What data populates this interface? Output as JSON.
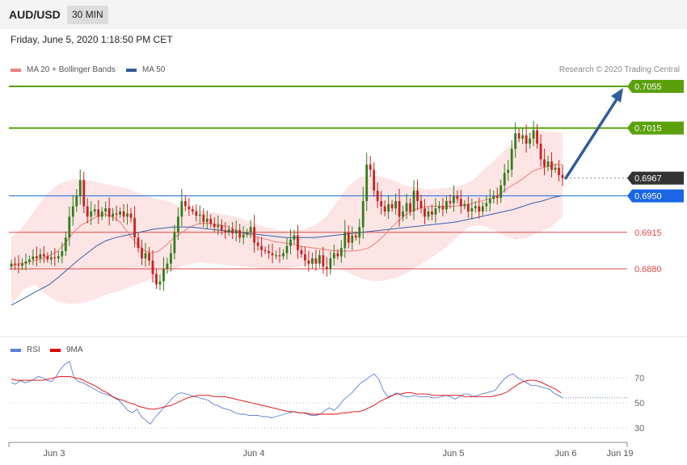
{
  "header": {
    "symbol": "AUD/USD",
    "timeframe": "30 MIN",
    "datetime": "Friday, June 5, 2020 1:18:50 PM CET",
    "credit": "Research © 2020 Trading Central"
  },
  "legend_main": [
    {
      "label": "MA 20 + Bollinger Bands",
      "color": "#f08080"
    },
    {
      "label": "MA 50",
      "color": "#2f5c9c"
    }
  ],
  "legend_rsi": [
    {
      "label": "RSI",
      "color": "#5b7fd6"
    },
    {
      "label": "9MA",
      "color": "#e00000"
    }
  ],
  "colors": {
    "resistance": "#5aa00a",
    "support": "#e04848",
    "pivot": "#1a66e6",
    "last_price": "#333333",
    "arrow": "#2f5c9c",
    "band_fill": "#fde0e0",
    "candle_up": "#2f7d1c",
    "candle_down": "#cc1f1f"
  },
  "chart_data": [
    {
      "type": "candlestick",
      "title": "AUD/USD 30 MIN",
      "ylim": [
        0.6842,
        0.7065
      ],
      "x_tick_labels": [
        "Jun 3",
        "Jun 4",
        "Jun 5",
        "Jun 6",
        "Jun 19"
      ],
      "levels": [
        {
          "value": 0.7055,
          "label": "0.7055",
          "kind": "resistance"
        },
        {
          "value": 0.7015,
          "label": "0.7015",
          "kind": "resistance"
        },
        {
          "value": 0.6967,
          "label": "0.6967",
          "kind": "last"
        },
        {
          "value": 0.695,
          "label": "0.6950",
          "kind": "pivot"
        },
        {
          "value": 0.6915,
          "label": "0.6915",
          "kind": "support"
        },
        {
          "value": 0.688,
          "label": "0.6880",
          "kind": "support"
        }
      ],
      "closes": [
        0.6885,
        0.6884,
        0.6883,
        0.6885,
        0.6887,
        0.6889,
        0.6892,
        0.689,
        0.6894,
        0.6892,
        0.6889,
        0.6891,
        0.689,
        0.6892,
        0.6897,
        0.691,
        0.693,
        0.694,
        0.695,
        0.6965,
        0.694,
        0.693,
        0.6935,
        0.6937,
        0.693,
        0.6935,
        0.6938,
        0.693,
        0.6933,
        0.6932,
        0.6935,
        0.693,
        0.6933,
        0.6929,
        0.691,
        0.69,
        0.689,
        0.6895,
        0.6888,
        0.6875,
        0.6865,
        0.6868,
        0.688,
        0.6885,
        0.6895,
        0.6915,
        0.693,
        0.6945,
        0.694,
        0.6937,
        0.6935,
        0.6931,
        0.6932,
        0.6925,
        0.6928,
        0.6923,
        0.692,
        0.6922,
        0.6917,
        0.6915,
        0.6918,
        0.6914,
        0.6917,
        0.691,
        0.6913,
        0.6915,
        0.692,
        0.6905,
        0.6902,
        0.6898,
        0.6897,
        0.6895,
        0.6893,
        0.6893,
        0.6892,
        0.6895,
        0.6902,
        0.6908,
        0.6912,
        0.6898,
        0.6894,
        0.6888,
        0.6885,
        0.689,
        0.6885,
        0.6893,
        0.6882,
        0.688,
        0.689,
        0.6895,
        0.6892,
        0.69,
        0.6915,
        0.6905,
        0.6912,
        0.691,
        0.692,
        0.6945,
        0.698,
        0.6975,
        0.6955,
        0.6945,
        0.694,
        0.6935,
        0.6942,
        0.6938,
        0.6945,
        0.693,
        0.6935,
        0.6943,
        0.6935,
        0.6955,
        0.6945,
        0.6938,
        0.693,
        0.6935,
        0.6932,
        0.6938,
        0.694,
        0.6937,
        0.6945,
        0.6943,
        0.695,
        0.6947,
        0.694,
        0.6942,
        0.6935,
        0.6938,
        0.694,
        0.6935,
        0.694,
        0.6943,
        0.6947,
        0.695,
        0.6948,
        0.696,
        0.6972,
        0.6975,
        0.6995,
        0.701,
        0.7005,
        0.7008,
        0.7,
        0.7005,
        0.7013,
        0.7,
        0.6985,
        0.6978,
        0.6983,
        0.6975,
        0.6977,
        0.697,
        0.6967
      ],
      "series": [
        {
          "name": "MA 20",
          "values": [
            0.6883,
            0.6885,
            0.6886,
            0.6888,
            0.689,
            0.6893,
            0.6897,
            0.6905,
            0.6915,
            0.6922,
            0.6926,
            0.693,
            0.6932,
            0.693,
            0.6925,
            0.6915,
            0.6905,
            0.6898,
            0.6895,
            0.6897,
            0.6903,
            0.691,
            0.6915,
            0.692,
            0.6923,
            0.6924,
            0.6923,
            0.6922,
            0.692,
            0.6917,
            0.6914,
            0.6912,
            0.691,
            0.6908,
            0.6906,
            0.6905,
            0.6904,
            0.6902,
            0.6901,
            0.69,
            0.6899,
            0.6898,
            0.6897,
            0.6897,
            0.6897,
            0.6898,
            0.69,
            0.6905,
            0.6912,
            0.692,
            0.6927,
            0.6933,
            0.6937,
            0.6939,
            0.694,
            0.694,
            0.694,
            0.694,
            0.6941,
            0.6942,
            0.6944,
            0.6946,
            0.6948,
            0.6952,
            0.6958,
            0.6962,
            0.6967,
            0.6973,
            0.6976,
            0.6978,
            0.698,
            0.698
          ]
        },
        {
          "name": "MA 50",
          "values": [
            0.6845,
            0.685,
            0.6855,
            0.686,
            0.6865,
            0.6872,
            0.688,
            0.6888,
            0.6895,
            0.6902,
            0.6907,
            0.691,
            0.6912,
            0.6914,
            0.6916,
            0.6918,
            0.6919,
            0.692,
            0.692,
            0.692,
            0.6919,
            0.6918,
            0.6917,
            0.6916,
            0.6915,
            0.6914,
            0.6913,
            0.6912,
            0.6911,
            0.691,
            0.691,
            0.691,
            0.691,
            0.6911,
            0.6912,
            0.6913,
            0.6914,
            0.6915,
            0.6916,
            0.6917,
            0.6918,
            0.6919,
            0.692,
            0.6921,
            0.6922,
            0.6923,
            0.6924,
            0.6925,
            0.6927,
            0.6929,
            0.6931,
            0.6933,
            0.6935,
            0.6937,
            0.694,
            0.6943,
            0.6945,
            0.6948,
            0.695
          ]
        },
        {
          "name": "Bollinger Upper",
          "values": [
            0.691,
            0.692,
            0.6935,
            0.695,
            0.696,
            0.6965,
            0.6966,
            0.6965,
            0.6962,
            0.696,
            0.6958,
            0.6954,
            0.695,
            0.6947,
            0.6945,
            0.694,
            0.6938,
            0.6936,
            0.6934,
            0.6932,
            0.693,
            0.6926,
            0.6922,
            0.6919,
            0.6917,
            0.6916,
            0.6918,
            0.6922,
            0.693,
            0.6945,
            0.696,
            0.6968,
            0.697,
            0.6968,
            0.6965,
            0.696,
            0.6958,
            0.6956,
            0.6957,
            0.6958,
            0.696,
            0.6965,
            0.6975,
            0.6985,
            0.6995,
            0.7005,
            0.701,
            0.7012,
            0.7012,
            0.701
          ]
        },
        {
          "name": "Bollinger Lower",
          "values": [
            0.6845,
            0.686,
            0.6865,
            0.6855,
            0.6848,
            0.6846,
            0.6847,
            0.685,
            0.6855,
            0.6858,
            0.6862,
            0.6866,
            0.687,
            0.6875,
            0.688,
            0.6884,
            0.6886,
            0.6885,
            0.6884,
            0.6883,
            0.6882,
            0.6881,
            0.688,
            0.688,
            0.6881,
            0.6883,
            0.6885,
            0.6884,
            0.688,
            0.6875,
            0.687,
            0.6868,
            0.6869,
            0.6872,
            0.6878,
            0.6885,
            0.6892,
            0.69,
            0.691,
            0.692,
            0.6922,
            0.6918,
            0.6912,
            0.6908,
            0.691,
            0.6915,
            0.692,
            0.693
          ]
        }
      ],
      "projection_arrow": {
        "from": 0.6967,
        "to": 0.7055
      }
    },
    {
      "type": "line",
      "title": "RSI",
      "ylim": [
        20,
        85
      ],
      "y_ticks": [
        30,
        50,
        70
      ],
      "series": [
        {
          "name": "RSI",
          "values": [
            66,
            65,
            68,
            66,
            67,
            69,
            71,
            70,
            68,
            67,
            71,
            77,
            81,
            83,
            70,
            67,
            66,
            64,
            62,
            60,
            58,
            57,
            56,
            54,
            52,
            48,
            44,
            42,
            45,
            39,
            36,
            33,
            38,
            42,
            46,
            50,
            54,
            57,
            58,
            57,
            56,
            55,
            54,
            53,
            52,
            49,
            48,
            46,
            45,
            44,
            42,
            41,
            41,
            40,
            40,
            40,
            39,
            39,
            38,
            39,
            40,
            41,
            42,
            43,
            42,
            42,
            41,
            40,
            40,
            41,
            44,
            46,
            44,
            47,
            52,
            55,
            58,
            62,
            66,
            68,
            71,
            73,
            69,
            60,
            55,
            56,
            58,
            56,
            55,
            55,
            56,
            55,
            55,
            55,
            54,
            54,
            55,
            56,
            55,
            53,
            55,
            57,
            57,
            55,
            56,
            57,
            58,
            59,
            60,
            65,
            69,
            72,
            73,
            70,
            68,
            66,
            64,
            64,
            63,
            62,
            61,
            58,
            56,
            54
          ]
        },
        {
          "name": "9MA",
          "values": [
            69,
            68,
            68,
            68,
            68,
            68,
            68,
            69,
            70,
            71,
            71,
            71,
            70,
            69,
            67,
            65,
            63,
            60,
            58,
            55,
            53,
            52,
            50,
            49,
            47,
            46,
            45,
            45,
            46,
            47,
            48,
            50,
            52,
            54,
            55,
            56,
            56,
            56,
            55,
            55,
            55,
            54,
            53,
            52,
            51,
            50,
            49,
            48,
            47,
            46,
            45,
            44,
            43,
            43,
            42,
            42,
            41,
            41,
            41,
            41,
            41,
            41,
            42,
            42,
            43,
            43,
            44,
            46,
            48,
            51,
            53,
            55,
            57,
            57,
            58,
            58,
            57,
            57,
            57,
            56,
            56,
            56,
            56,
            56,
            56,
            55,
            55,
            55,
            55,
            55,
            55,
            56,
            57,
            59,
            62,
            65,
            67,
            68,
            68,
            67,
            65,
            63,
            61,
            58
          ]
        }
      ]
    }
  ]
}
